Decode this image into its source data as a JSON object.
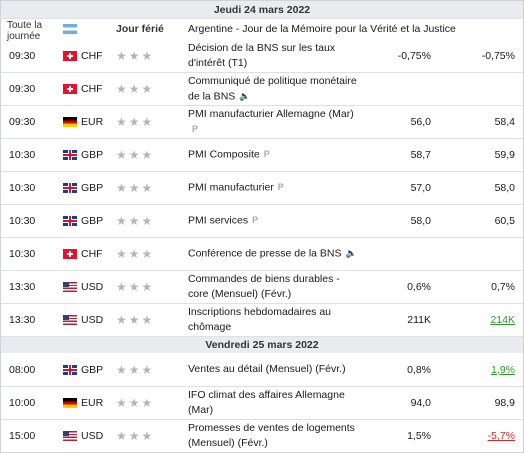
{
  "days": [
    {
      "title": "Jeudi 24 mars 2022"
    },
    {
      "title": "Vendredi 25 mars 2022"
    }
  ],
  "holiday_row": {
    "time_label": "Toute la journée",
    "flag": "ar",
    "importance_label": "Jour férié",
    "event": "Argentine - Jour de la Mémoire pour la Vérité et la Justice"
  },
  "events_day1": [
    {
      "time": "09:30",
      "flag": "ch",
      "currency": "CHF",
      "event": "Décision de la BNS sur les taux d'intérêt (T1)",
      "actual": "-0,75%",
      "previous": "-0,75%",
      "prev_style": ""
    },
    {
      "time": "09:30",
      "flag": "ch",
      "currency": "CHF",
      "event": "Communiqué de politique monétaire de la BNS",
      "icon": "speaker-icon",
      "actual": "",
      "previous": "",
      "prev_style": ""
    },
    {
      "time": "09:30",
      "flag": "de",
      "currency": "EUR",
      "event": "PMI manufacturier Allemagne (Mar)",
      "icon": "preliminary-icon",
      "actual": "56,0",
      "previous": "58,4",
      "prev_style": ""
    },
    {
      "time": "10:30",
      "flag": "gb",
      "currency": "GBP",
      "event": "PMI Composite",
      "icon": "preliminary-icon",
      "actual": "58,7",
      "previous": "59,9",
      "prev_style": ""
    },
    {
      "time": "10:30",
      "flag": "gb",
      "currency": "GBP",
      "event": "PMI manufacturier",
      "icon": "preliminary-icon",
      "actual": "57,0",
      "previous": "58,0",
      "prev_style": ""
    },
    {
      "time": "10:30",
      "flag": "gb",
      "currency": "GBP",
      "event": "PMI services",
      "icon": "preliminary-icon",
      "actual": "58,0",
      "previous": "60,5",
      "prev_style": ""
    },
    {
      "time": "10:30",
      "flag": "ch",
      "currency": "CHF",
      "event": "Conférence de presse de la BNS",
      "icon": "speaker-icon",
      "actual": "",
      "previous": "",
      "prev_style": ""
    },
    {
      "time": "13:30",
      "flag": "us",
      "currency": "USD",
      "event": "Commandes de biens durables - core (Mensuel) (Févr.)",
      "actual": "0,6%",
      "previous": "0,7%",
      "prev_style": ""
    },
    {
      "time": "13:30",
      "flag": "us",
      "currency": "USD",
      "event": "Inscriptions hebdomadaires au chômage",
      "actual": "211K",
      "previous": "214K",
      "prev_style": "green"
    }
  ],
  "events_day2": [
    {
      "time": "08:00",
      "flag": "gb",
      "currency": "GBP",
      "event": "Ventes au détail (Mensuel) (Févr.)",
      "actual": "0,8%",
      "previous": "1,9%",
      "prev_style": "green"
    },
    {
      "time": "10:00",
      "flag": "de",
      "currency": "EUR",
      "event": "IFO climat des affaires Allemagne (Mar)",
      "actual": "94,0",
      "previous": "98,9",
      "prev_style": ""
    },
    {
      "time": "15:00",
      "flag": "us",
      "currency": "USD",
      "event": "Promesses de ventes de logements (Mensuel) (Févr.)",
      "actual": "1,5%",
      "previous": "-5,7%",
      "prev_style": "red"
    }
  ],
  "icons": {
    "speaker": "🔈",
    "preliminary": "P"
  },
  "colors": {
    "accent_green": "#2a9b2a",
    "accent_red": "#d12a2a",
    "day_header_bg": "#e9ebee",
    "star_gray": "#b5b5b5"
  }
}
